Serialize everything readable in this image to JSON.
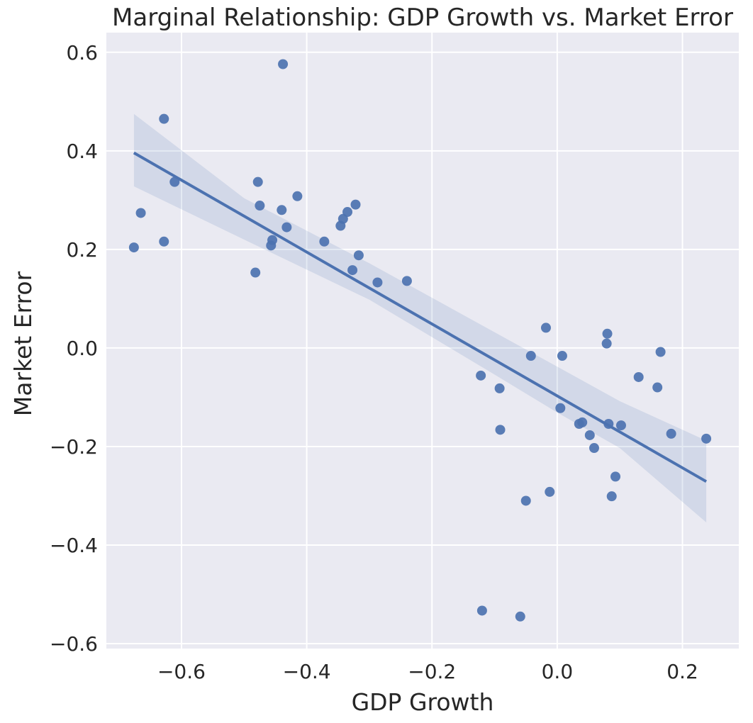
{
  "chart_data": {
    "type": "scatter",
    "title": "Marginal Relationship: GDP Growth vs. Market Error",
    "xlabel": "GDP Growth",
    "ylabel": "Market Error",
    "xlim": [
      -0.72,
      0.29
    ],
    "ylim": [
      -0.61,
      0.64
    ],
    "xticks": [
      -0.6,
      -0.4,
      -0.2,
      0.0,
      0.2
    ],
    "xtick_labels": [
      "−0.6",
      "−0.4",
      "−0.2",
      "0.0",
      "0.2"
    ],
    "yticks": [
      -0.6,
      -0.4,
      -0.2,
      0.0,
      0.2,
      0.4,
      0.6
    ],
    "ytick_labels": [
      "−0.6",
      "−0.4",
      "−0.2",
      "0.0",
      "0.2",
      "0.4",
      "0.6"
    ],
    "grid": true,
    "color": "#4c72b0",
    "background": "#eaeaf2",
    "points": [
      {
        "x": -0.676,
        "y": 0.204
      },
      {
        "x": -0.665,
        "y": 0.274
      },
      {
        "x": -0.628,
        "y": 0.465
      },
      {
        "x": -0.628,
        "y": 0.216
      },
      {
        "x": -0.611,
        "y": 0.337
      },
      {
        "x": -0.482,
        "y": 0.153
      },
      {
        "x": -0.478,
        "y": 0.337
      },
      {
        "x": -0.475,
        "y": 0.289
      },
      {
        "x": -0.457,
        "y": 0.208
      },
      {
        "x": -0.455,
        "y": 0.219
      },
      {
        "x": -0.44,
        "y": 0.28
      },
      {
        "x": -0.438,
        "y": 0.576
      },
      {
        "x": -0.432,
        "y": 0.245
      },
      {
        "x": -0.415,
        "y": 0.308
      },
      {
        "x": -0.372,
        "y": 0.216
      },
      {
        "x": -0.346,
        "y": 0.248
      },
      {
        "x": -0.342,
        "y": 0.262
      },
      {
        "x": -0.335,
        "y": 0.276
      },
      {
        "x": -0.327,
        "y": 0.158
      },
      {
        "x": -0.322,
        "y": 0.291
      },
      {
        "x": -0.317,
        "y": 0.188
      },
      {
        "x": -0.287,
        "y": 0.133
      },
      {
        "x": -0.24,
        "y": 0.136
      },
      {
        "x": -0.122,
        "y": -0.056
      },
      {
        "x": -0.12,
        "y": -0.533
      },
      {
        "x": -0.092,
        "y": -0.082
      },
      {
        "x": -0.091,
        "y": -0.166
      },
      {
        "x": -0.059,
        "y": -0.545
      },
      {
        "x": -0.05,
        "y": -0.31
      },
      {
        "x": -0.042,
        "y": -0.016
      },
      {
        "x": -0.018,
        "y": 0.041
      },
      {
        "x": -0.012,
        "y": -0.292
      },
      {
        "x": 0.005,
        "y": -0.122
      },
      {
        "x": 0.008,
        "y": -0.016
      },
      {
        "x": 0.035,
        "y": -0.154
      },
      {
        "x": 0.04,
        "y": -0.151
      },
      {
        "x": 0.052,
        "y": -0.177
      },
      {
        "x": 0.059,
        "y": -0.203
      },
      {
        "x": 0.079,
        "y": 0.009
      },
      {
        "x": 0.08,
        "y": 0.029
      },
      {
        "x": 0.082,
        "y": -0.154
      },
      {
        "x": 0.087,
        "y": -0.301
      },
      {
        "x": 0.093,
        "y": -0.261
      },
      {
        "x": 0.102,
        "y": -0.157
      },
      {
        "x": 0.13,
        "y": -0.059
      },
      {
        "x": 0.16,
        "y": -0.08
      },
      {
        "x": 0.165,
        "y": -0.008
      },
      {
        "x": 0.182,
        "y": -0.174
      },
      {
        "x": 0.238,
        "y": -0.184
      }
    ],
    "regression": {
      "x": [
        -0.676,
        0.238
      ],
      "y": [
        0.396,
        -0.271
      ]
    },
    "ci_band": {
      "x": [
        -0.676,
        -0.5,
        -0.3,
        -0.1,
        0.0,
        0.1,
        0.238
      ],
      "upper": [
        0.475,
        0.304,
        0.172,
        0.032,
        -0.038,
        -0.108,
        -0.188
      ],
      "lower": [
        0.328,
        0.22,
        0.098,
        -0.054,
        -0.131,
        -0.203,
        -0.354
      ]
    }
  }
}
